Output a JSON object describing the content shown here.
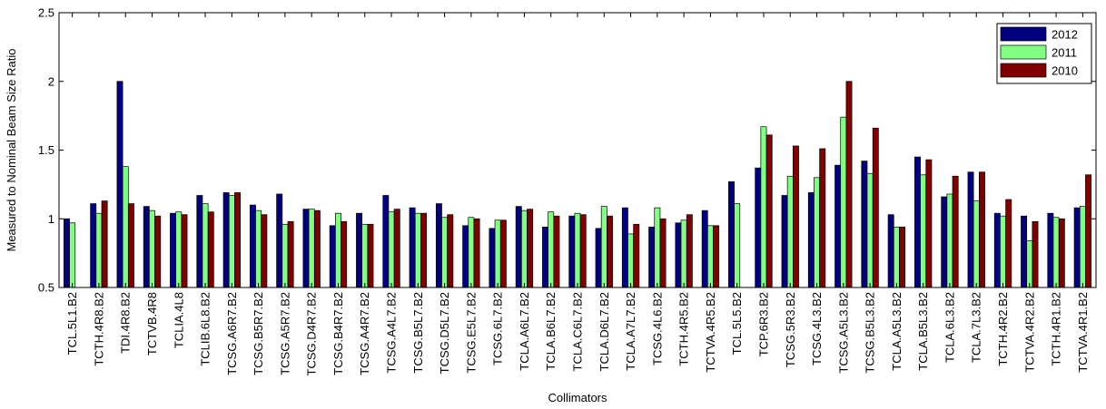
{
  "chart_data": {
    "type": "bar",
    "xlabel": "Collimators",
    "ylabel": "Measured to Nominal Beam Size Ratio",
    "ylim": [
      0.5,
      2.5
    ],
    "yticks": [
      "0.5",
      "1",
      "1.5",
      "2",
      "2.5"
    ],
    "legend_position": "top-right",
    "grid": false,
    "categories": [
      "TCL.5L1.B2",
      "TCTH.4R8.B2",
      "TDI.4R8.B2",
      "TCTVB.4R8",
      "TCLIA.4L8",
      "TCLIB.6L8.B2",
      "TCSG.A6R7.B2",
      "TCSG.B5R7.B2",
      "TCSG.A5R7.B2",
      "TCSG.D4R7.B2",
      "TCSG.B4R7.B2",
      "TCSG.A4R7.B2",
      "TCSG.A4L7.B2",
      "TCSG.B5L7.B2",
      "TCSG.D5L7.B2",
      "TCSG.E5L7.B2",
      "TCSG.6L7.B2",
      "TCLA.A6L7.B2",
      "TCLA.B6L7.B2",
      "TCLA.C6L7.B2",
      "TCLA.D6L7.B2",
      "TCLA.A7L7.B2",
      "TCSG.4L6.B2",
      "TCTH.4R5.B2",
      "TCTVA.4R5.B2",
      "TCL.5L5.B2",
      "TCP.6R3.B2",
      "TCSG.5R3.B2",
      "TCSG.4L3.B2",
      "TCSG.A5L3.B2",
      "TCSG.B5L3.B2",
      "TCLA.A5L3.B2",
      "TCLA.B5L3.B2",
      "TCLA.6L3.B2",
      "TCLA.7L3.B2",
      "TCTH.4R2.B2",
      "TCTVA.4R2.B2",
      "TCTH.4R1.B2",
      "TCTVA.4R1.B2"
    ],
    "series": [
      {
        "name": "2012",
        "color": "#000080",
        "values": [
          1.0,
          1.11,
          2.0,
          1.09,
          1.04,
          1.17,
          1.19,
          1.1,
          1.18,
          1.07,
          0.95,
          1.04,
          1.17,
          1.08,
          1.11,
          0.95,
          0.93,
          1.09,
          0.94,
          1.02,
          0.93,
          1.08,
          0.94,
          0.97,
          1.06,
          1.27,
          1.37,
          1.17,
          1.19,
          1.39,
          1.42,
          1.03,
          1.45,
          1.16,
          1.34,
          1.04,
          1.02,
          1.04,
          1.08
        ]
      },
      {
        "name": "2011",
        "color": "#80ff80",
        "values": [
          0.97,
          1.04,
          1.38,
          1.06,
          1.05,
          1.11,
          1.17,
          1.06,
          0.96,
          1.07,
          1.04,
          0.96,
          1.05,
          1.04,
          1.01,
          1.01,
          0.99,
          1.06,
          1.05,
          1.04,
          1.09,
          0.89,
          1.08,
          0.99,
          0.95,
          1.11,
          1.67,
          1.31,
          1.3,
          1.74,
          1.33,
          0.94,
          1.32,
          1.18,
          1.13,
          1.02,
          0.84,
          1.01,
          1.09
        ]
      },
      {
        "name": "2010",
        "color": "#800000",
        "values": [
          null,
          1.13,
          1.11,
          1.02,
          1.03,
          1.05,
          1.19,
          1.03,
          0.98,
          1.06,
          0.98,
          0.96,
          1.07,
          1.04,
          1.03,
          1.0,
          0.99,
          1.07,
          1.02,
          1.03,
          1.02,
          0.96,
          1.0,
          1.03,
          0.95,
          null,
          1.61,
          1.53,
          1.51,
          2.0,
          1.66,
          0.94,
          1.43,
          1.31,
          1.34,
          1.14,
          0.98,
          1.0,
          1.32
        ]
      }
    ]
  }
}
